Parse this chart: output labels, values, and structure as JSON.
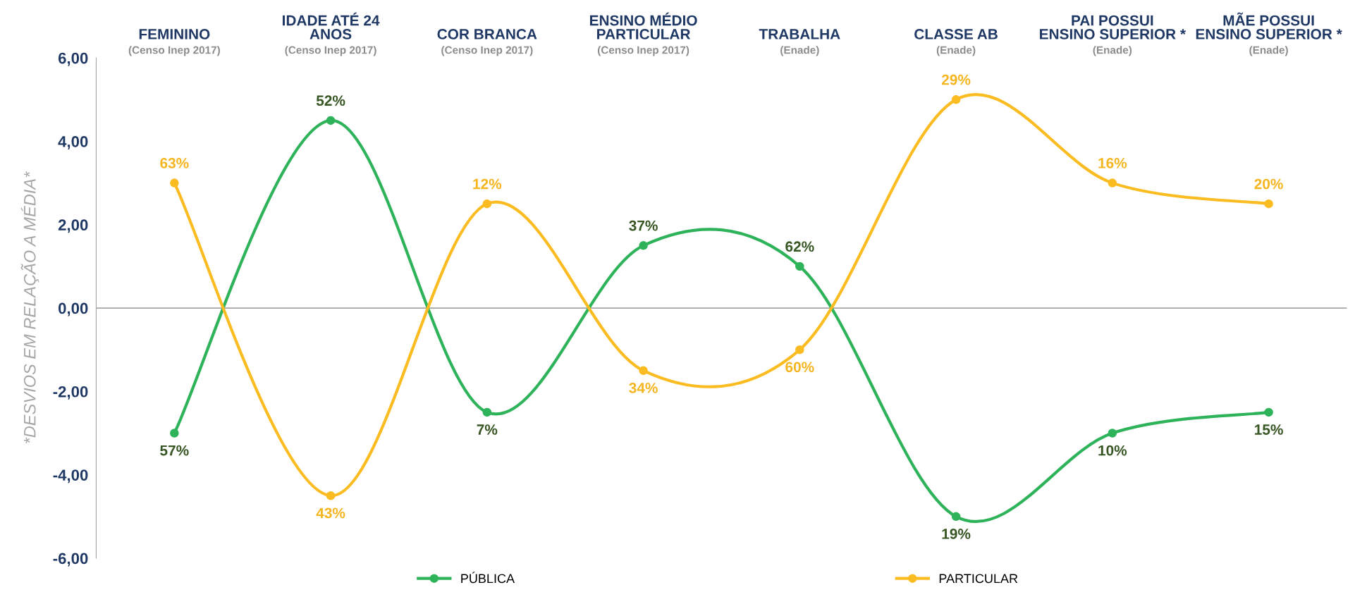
{
  "chart_data": {
    "type": "line",
    "categories": [
      "FEMININO",
      "IDADE ATÉ 24\nANOS",
      "COR BRANCA",
      "ENSINO MÉDIO\nPARTICULAR",
      "TRABALHA",
      "CLASSE AB",
      "PAI POSSUI\nENSINO SUPERIOR *",
      "MÃE POSSUI\nENSINO SUPERIOR *"
    ],
    "series": [
      {
        "name": "PÚBLICA",
        "color": "#2eb35a",
        "values": [
          -3,
          4.5,
          -2.5,
          1.5,
          1,
          -5,
          -3,
          -2.5
        ]
      },
      {
        "name": "PARTICULAR",
        "color": "#fbbc22",
        "values": [
          3,
          -4.5,
          2.5,
          -1.5,
          -1,
          5,
          3,
          2.5
        ]
      }
    ],
    "annotations": [
      "(Censo Inep 2017)",
      "(Censo Inep 2017)",
      "(Censo Inep 2017)",
      "(Censo Inep 2017)",
      "(Enade)",
      "(Enade)",
      "(Enade)",
      "(Enade)",
      {
        "text": "57%",
        "x": "FEMININO",
        "y": -3
      },
      {
        "text": "52%",
        "x": "IDADE ATÉ 24\nANOS",
        "y": 4.5
      },
      {
        "text": "7%",
        "x": "COR BRANCA",
        "y": -2.5
      },
      {
        "text": "37%",
        "x": "ENSINO MÉDIO\nPARTICULAR",
        "y": 1.5
      },
      {
        "text": "62%",
        "x": "TRABALHA",
        "y": 1
      },
      {
        "text": "19%",
        "x": "CLASSE AB",
        "y": -5
      },
      {
        "text": "10%",
        "x": "PAI POSSUI\nENSINO SUPERIOR *",
        "y": -3
      },
      {
        "text": "15%",
        "x": "MÃE POSSUI\nENSINO SUPERIOR *",
        "y": -2.5
      },
      {
        "text": "63%",
        "x": "FEMININO",
        "y": 3
      },
      {
        "text": "43%",
        "x": "IDADE ATÉ 24\nANOS",
        "y": -4.5
      },
      {
        "text": "12%",
        "x": "COR BRANCA",
        "y": 2.5
      },
      {
        "text": "34%",
        "x": "ENSINO MÉDIO\nPARTICULAR",
        "y": -1.5
      },
      {
        "text": "60%",
        "x": "TRABALHA",
        "y": -1
      },
      {
        "text": "29%",
        "x": "CLASSE AB",
        "y": 5
      },
      {
        "text": "16%",
        "x": "PAI POSSUI\nENSINO SUPERIOR *",
        "y": 3
      },
      {
        "text": "20%",
        "x": "MÃE POSSUI\nENSINO SUPERIOR *",
        "y": 2.5
      }
    ],
    "ylabel": "*DESVIOS EM RELAÇÃO A MÉDIA*",
    "ylim": [
      -6,
      6
    ],
    "yticks": [
      {
        "value": -6,
        "label": "-6,00"
      },
      {
        "value": -4,
        "label": "-4,00"
      },
      {
        "value": -2,
        "label": "-2,00"
      },
      {
        "value": 0,
        "label": "0,00"
      },
      {
        "value": 2,
        "label": "2,00"
      },
      {
        "value": 4,
        "label": "4,00"
      },
      {
        "value": 6,
        "label": "6,00"
      }
    ],
    "ref_lines": [
      {
        "axis": "y",
        "value": 0,
        "color": "#a6a6a6"
      }
    ],
    "grid": false,
    "legend": "bottom",
    "marker": "circle",
    "line_style": "solid"
  }
}
